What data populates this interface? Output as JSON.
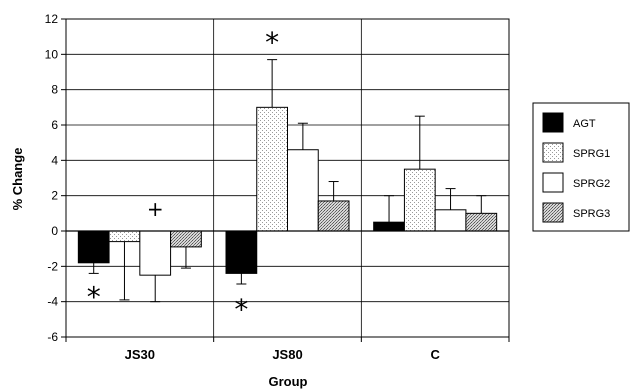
{
  "chart_data": {
    "type": "bar",
    "title": "",
    "xlabel": "Group",
    "ylabel": "% Change",
    "ylim": [
      -6,
      12
    ],
    "yticks": [
      -6,
      -4,
      -2,
      0,
      2,
      4,
      6,
      8,
      10,
      12
    ],
    "grid": true,
    "legend_position": "right",
    "categories": [
      "JS30",
      "JS80",
      "C"
    ],
    "series": [
      {
        "name": "AGT",
        "values": [
          -1.8,
          -2.4,
          0.5
        ],
        "errors": [
          0.6,
          0.6,
          1.5
        ],
        "color": "#000000",
        "pattern": "solid"
      },
      {
        "name": "SPRG1",
        "values": [
          -0.6,
          7.0,
          3.5
        ],
        "errors": [
          3.3,
          2.7,
          3.0
        ],
        "color": "#f2f2f2",
        "pattern": "light-dots"
      },
      {
        "name": "SPRG2",
        "values": [
          -2.5,
          4.6,
          1.2
        ],
        "errors": [
          1.5,
          1.5,
          1.2
        ],
        "color": "#ffffff",
        "pattern": "none"
      },
      {
        "name": "SPRG3",
        "values": [
          -0.9,
          1.7,
          1.0
        ],
        "errors": [
          1.2,
          1.1,
          1.0
        ],
        "color": "#bdbdbd",
        "pattern": "dense-dots"
      }
    ],
    "annotations": [
      {
        "text": "*",
        "category": "JS30",
        "series": "AGT",
        "y": -3.6
      },
      {
        "text": "+",
        "category": "JS30",
        "series": "SPRG2",
        "y": 1.2
      },
      {
        "text": "*",
        "category": "JS80",
        "series": "SPRG1",
        "y": 10.8
      },
      {
        "text": "*",
        "category": "JS80",
        "series": "AGT",
        "y": -4.3
      }
    ]
  }
}
